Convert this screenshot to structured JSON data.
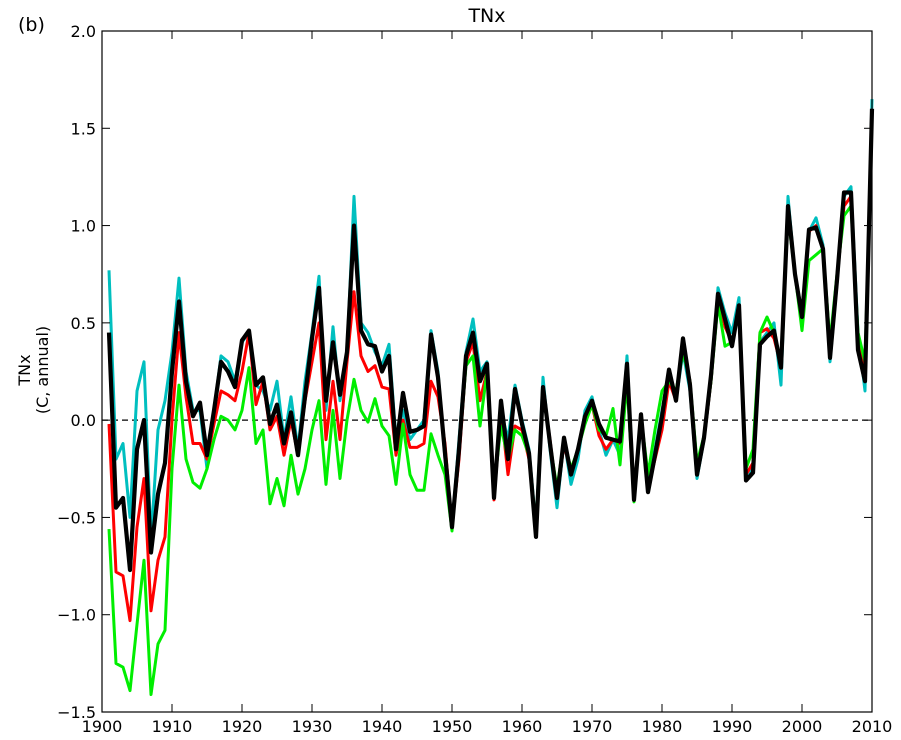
{
  "chart_data": {
    "type": "line",
    "panel_label": "(b)",
    "title": "TNx",
    "ylabel_line1": "TNx",
    "ylabel_line2": "(C, annual)",
    "xlim": [
      1900,
      2010
    ],
    "ylim": [
      -1.5,
      2.0
    ],
    "xticks": [
      1900,
      1910,
      1920,
      1930,
      1940,
      1950,
      1960,
      1970,
      1980,
      1990,
      2000,
      2010
    ],
    "yticks": [
      -1.5,
      -1.0,
      -0.5,
      0.0,
      0.5,
      1.0,
      1.5,
      2.0
    ],
    "ytick_labels": [
      "−1.5",
      "−1.0",
      "−0.5",
      "0.0",
      "0.5",
      "1.0",
      "1.5",
      "2.0"
    ],
    "reference_line": {
      "y": 0.0,
      "style": "dashed",
      "color": "#000000"
    },
    "grid": false,
    "x": [
      1901,
      1902,
      1903,
      1904,
      1905,
      1906,
      1907,
      1908,
      1909,
      1910,
      1911,
      1912,
      1913,
      1914,
      1915,
      1916,
      1917,
      1918,
      1919,
      1920,
      1921,
      1922,
      1923,
      1924,
      1925,
      1926,
      1927,
      1928,
      1929,
      1930,
      1931,
      1932,
      1933,
      1934,
      1935,
      1936,
      1937,
      1938,
      1939,
      1940,
      1941,
      1942,
      1943,
      1944,
      1945,
      1946,
      1947,
      1948,
      1949,
      1950,
      1951,
      1952,
      1953,
      1954,
      1955,
      1956,
      1957,
      1958,
      1959,
      1960,
      1961,
      1962,
      1963,
      1964,
      1965,
      1966,
      1967,
      1968,
      1969,
      1970,
      1971,
      1972,
      1973,
      1974,
      1975,
      1976,
      1977,
      1978,
      1979,
      1980,
      1981,
      1982,
      1983,
      1984,
      1985,
      1986,
      1987,
      1988,
      1989,
      1990,
      1991,
      1992,
      1993,
      1994,
      1995,
      1996,
      1997,
      1998,
      1999,
      2000,
      2001,
      2002,
      2003,
      2004,
      2005,
      2006,
      2007,
      2008,
      2009,
      2010
    ],
    "series": [
      {
        "color": "#00bfbf",
        "values": [
          0.77,
          -0.2,
          -0.12,
          -0.5,
          0.15,
          0.3,
          -0.62,
          -0.05,
          0.1,
          0.35,
          0.73,
          0.25,
          0.05,
          0.05,
          -0.25,
          0.05,
          0.33,
          0.3,
          0.2,
          0.4,
          0.45,
          0.18,
          0.15,
          0.05,
          0.2,
          -0.1,
          0.12,
          -0.15,
          0.2,
          0.45,
          0.74,
          0.05,
          0.48,
          0.1,
          0.35,
          1.15,
          0.5,
          0.45,
          0.35,
          0.28,
          0.39,
          -0.1,
          0.05,
          -0.1,
          -0.05,
          0.0,
          0.46,
          0.25,
          -0.2,
          -0.55,
          -0.1,
          0.35,
          0.52,
          0.25,
          0.3,
          -0.4,
          0.05,
          -0.1,
          0.18,
          0.0,
          -0.15,
          -0.55,
          0.22,
          -0.15,
          -0.45,
          -0.1,
          -0.33,
          -0.2,
          0.05,
          0.12,
          -0.05,
          -0.18,
          -0.1,
          -0.18,
          0.33,
          -0.4,
          -0.02,
          -0.3,
          -0.15,
          0.05,
          0.25,
          0.1,
          0.35,
          0.15,
          -0.3,
          -0.1,
          0.2,
          0.68,
          0.55,
          0.45,
          0.63,
          -0.3,
          -0.25,
          0.4,
          0.45,
          0.5,
          0.18,
          1.15,
          0.75,
          0.55,
          0.97,
          1.04,
          0.9,
          0.3,
          0.7,
          1.15,
          1.2,
          0.45,
          0.15,
          1.65
        ]
      },
      {
        "color": "#ff0000",
        "values": [
          -0.02,
          -0.78,
          -0.8,
          -1.03,
          -0.55,
          -0.3,
          -0.98,
          -0.72,
          -0.6,
          0.0,
          0.45,
          0.12,
          -0.12,
          -0.12,
          -0.2,
          -0.02,
          0.15,
          0.13,
          0.1,
          0.25,
          0.45,
          0.08,
          0.2,
          -0.05,
          0.02,
          -0.18,
          0.0,
          -0.18,
          0.1,
          0.3,
          0.5,
          -0.1,
          0.2,
          -0.1,
          0.3,
          0.66,
          0.33,
          0.25,
          0.28,
          0.17,
          0.16,
          -0.18,
          0.0,
          -0.14,
          -0.14,
          -0.12,
          0.2,
          0.12,
          -0.12,
          -0.55,
          -0.2,
          0.3,
          0.4,
          0.1,
          0.25,
          -0.41,
          0.05,
          -0.28,
          -0.03,
          -0.05,
          -0.2,
          -0.55,
          0.15,
          -0.1,
          -0.4,
          -0.12,
          -0.28,
          -0.15,
          0.0,
          0.08,
          -0.08,
          -0.15,
          -0.1,
          -0.12,
          0.28,
          -0.4,
          0.0,
          -0.35,
          -0.2,
          -0.05,
          0.2,
          0.1,
          0.38,
          0.2,
          -0.25,
          -0.1,
          0.2,
          0.63,
          0.48,
          0.4,
          0.58,
          -0.28,
          -0.22,
          0.45,
          0.47,
          0.42,
          0.28,
          1.1,
          0.75,
          0.55,
          0.97,
          1.0,
          0.88,
          0.33,
          0.72,
          1.1,
          1.15,
          0.42,
          0.22,
          1.6
        ]
      },
      {
        "color": "#00ee00",
        "values": [
          -0.56,
          -1.25,
          -1.27,
          -1.39,
          -1.05,
          -0.72,
          -1.41,
          -1.15,
          -1.08,
          -0.25,
          0.18,
          -0.2,
          -0.32,
          -0.35,
          -0.25,
          -0.1,
          0.02,
          0.0,
          -0.05,
          0.05,
          0.27,
          -0.12,
          -0.05,
          -0.43,
          -0.3,
          -0.44,
          -0.18,
          -0.38,
          -0.25,
          -0.05,
          0.1,
          -0.33,
          0.05,
          -0.3,
          0.0,
          0.21,
          0.05,
          -0.01,
          0.11,
          -0.03,
          -0.08,
          -0.33,
          -0.02,
          -0.28,
          -0.36,
          -0.36,
          -0.07,
          -0.18,
          -0.28,
          -0.57,
          -0.15,
          0.28,
          0.33,
          -0.03,
          0.25,
          -0.35,
          -0.03,
          -0.2,
          -0.05,
          -0.08,
          -0.18,
          -0.55,
          0.15,
          -0.12,
          -0.35,
          -0.1,
          -0.25,
          -0.15,
          -0.02,
          0.08,
          -0.05,
          -0.08,
          0.06,
          -0.23,
          0.2,
          -0.42,
          0.02,
          -0.28,
          -0.05,
          0.15,
          0.2,
          0.15,
          0.35,
          0.2,
          -0.22,
          -0.08,
          0.2,
          0.6,
          0.38,
          0.4,
          0.58,
          -0.25,
          -0.15,
          0.45,
          0.53,
          0.45,
          0.3,
          1.05,
          0.75,
          0.46,
          0.82,
          0.85,
          0.88,
          0.4,
          0.75,
          1.05,
          1.1,
          0.45,
          0.3,
          1.55
        ]
      },
      {
        "color": "#000000",
        "values": [
          0.45,
          -0.45,
          -0.4,
          -0.77,
          -0.15,
          0.0,
          -0.68,
          -0.38,
          -0.22,
          0.25,
          0.61,
          0.2,
          0.02,
          0.09,
          -0.18,
          0.05,
          0.3,
          0.25,
          0.17,
          0.41,
          0.46,
          0.18,
          0.22,
          -0.02,
          0.08,
          -0.12,
          0.04,
          -0.18,
          0.12,
          0.42,
          0.68,
          0.1,
          0.4,
          0.13,
          0.35,
          1.0,
          0.46,
          0.39,
          0.38,
          0.25,
          0.33,
          -0.15,
          0.14,
          -0.06,
          -0.05,
          -0.03,
          0.44,
          0.22,
          -0.17,
          -0.55,
          -0.15,
          0.33,
          0.45,
          0.2,
          0.29,
          -0.4,
          0.1,
          -0.2,
          0.16,
          -0.02,
          -0.17,
          -0.6,
          0.17,
          -0.12,
          -0.4,
          -0.09,
          -0.28,
          -0.15,
          0.02,
          0.1,
          -0.02,
          -0.09,
          -0.1,
          -0.11,
          0.29,
          -0.41,
          0.03,
          -0.37,
          -0.18,
          0.02,
          0.26,
          0.1,
          0.42,
          0.18,
          -0.28,
          -0.09,
          0.23,
          0.65,
          0.52,
          0.38,
          0.59,
          -0.31,
          -0.27,
          0.39,
          0.43,
          0.46,
          0.27,
          1.1,
          0.75,
          0.53,
          0.98,
          0.99,
          0.88,
          0.32,
          0.72,
          1.17,
          1.17,
          0.36,
          0.2,
          1.6
        ]
      }
    ]
  }
}
